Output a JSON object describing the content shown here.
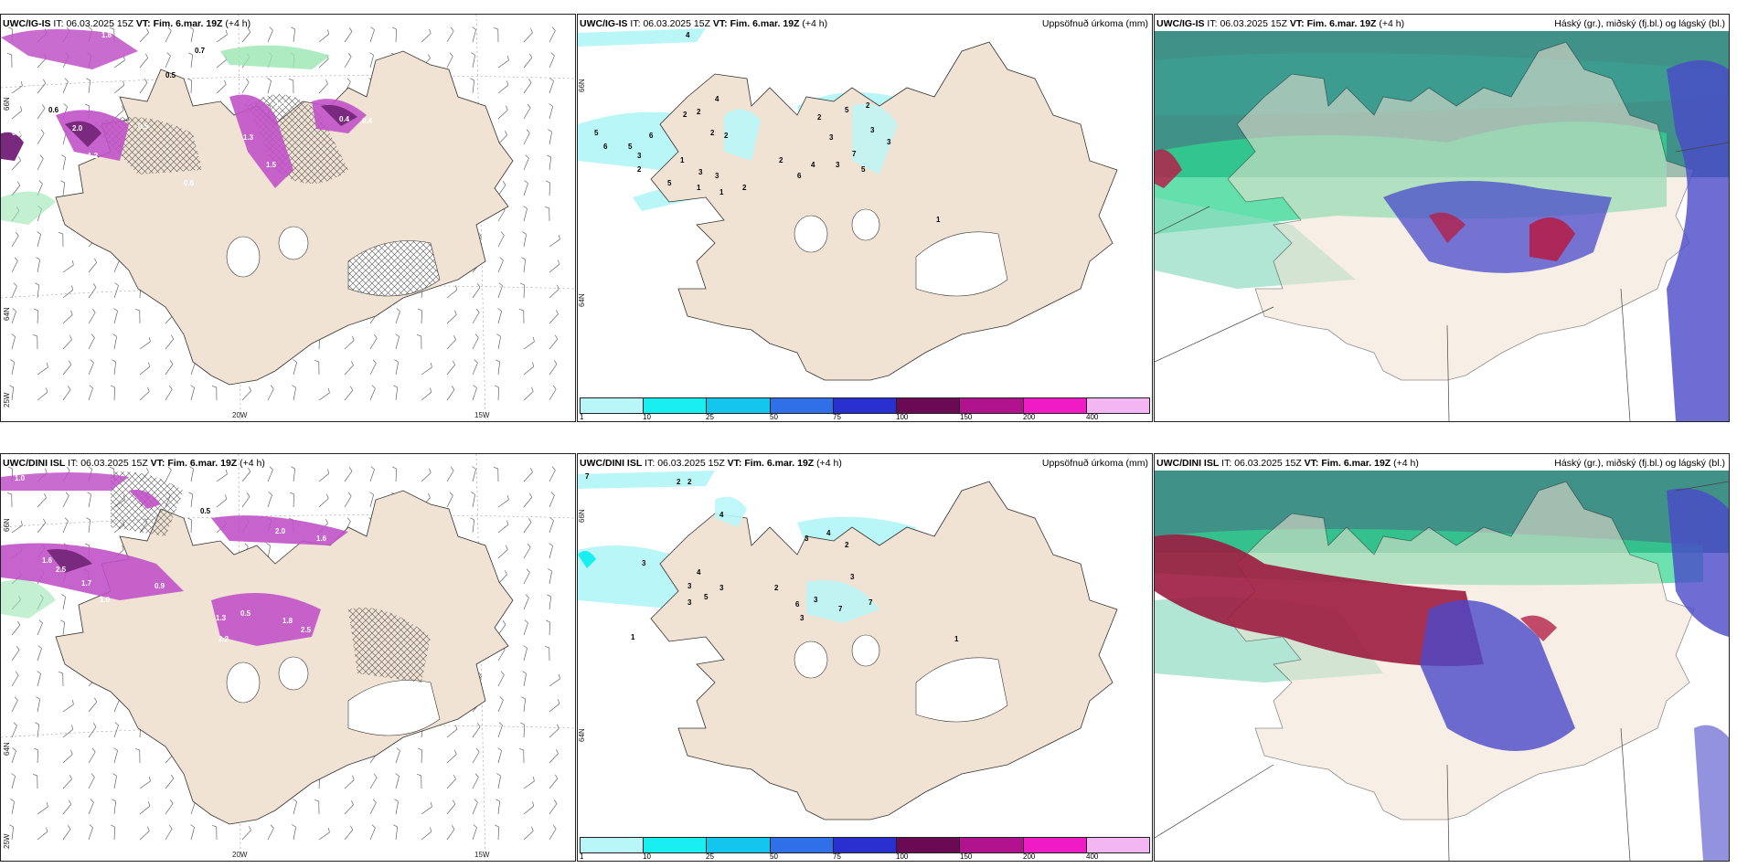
{
  "colors": {
    "land": "#f1e3d3",
    "coast": "#333333",
    "precip_light": "#b9f6f8",
    "snow_purple": "#c052c8",
    "snow_dark": "#7a2a7e",
    "green_light": "#9be6b0",
    "cloud_teal": "#1f7f74",
    "cloud_green": "#2fd690",
    "cloud_blue": "#4a49c9",
    "cloud_red": "#b3204a"
  },
  "colorbar": {
    "ticks": [
      "1",
      "10",
      "25",
      "50",
      "75",
      "100",
      "150",
      "200",
      "400"
    ],
    "colors": [
      "#b9f6f8",
      "#19eef0",
      "#13c6ee",
      "#2f6fe8",
      "#2a2fd0",
      "#6a0a55",
      "#b1138e",
      "#ef1cc6",
      "#f3b6f2"
    ]
  },
  "rows": [
    {
      "panels": [
        {
          "model": "UWC/IG-IS",
          "it_label": "IT:",
          "it_value": "06.03.2025 15Z",
          "vt_label": "VT:",
          "vt_value": "Fim. 6.mar. 19Z",
          "lead": "(+4 h)",
          "right_title": "",
          "coords": {
            "top_left": "66N",
            "mid_left": "64N",
            "bottom_left": "25W",
            "bottom_mid": "20W",
            "bottom_right": "15W"
          },
          "labels": [
            "0.5",
            "0.7",
            "0.6",
            "0.9",
            "1.8",
            "0.5",
            "0.4",
            "1.2",
            "2.0",
            "0.6",
            "1.5",
            "1.3",
            "0.4",
            "1.2"
          ]
        },
        {
          "model": "UWC/IG-IS",
          "it_label": "IT:",
          "it_value": "06.03.2025 15Z",
          "vt_label": "VT:",
          "vt_value": "Fim. 6.mar. 19Z",
          "lead": "(+4 h)",
          "right_title": "Uppsöfnuð úrkoma (mm)",
          "coords": {
            "side1": "66N",
            "side2": "64N"
          },
          "labels": [
            "5",
            "6",
            "5",
            "6",
            "2",
            "2",
            "3",
            "2",
            "1",
            "3",
            "5",
            "2",
            "1",
            "2",
            "1",
            "3",
            "2",
            "4",
            "2",
            "5",
            "3",
            "6",
            "2",
            "4",
            "3",
            "7",
            "3",
            "5",
            "2",
            "3",
            "1",
            "4"
          ]
        },
        {
          "model": "UWC/IG-IS",
          "it_label": "IT:",
          "it_value": "06.03.2025 15Z",
          "vt_label": "VT:",
          "vt_value": "Fim. 6.mar. 19Z",
          "lead": "(+4 h)",
          "right_title": "Háský (gr.), miðský (fj.bl.) og lágský (bl.)"
        }
      ]
    },
    {
      "panels": [
        {
          "model": "UWC/DINI ISL",
          "it_label": "IT:",
          "it_value": "06.03.2025 15Z",
          "vt_label": "VT:",
          "vt_value": "Fim. 6.mar. 19Z",
          "lead": "(+4 h)",
          "right_title": "",
          "coords": {
            "top_left": "66N",
            "mid_left": "64N",
            "bottom_left": "25W",
            "bottom_mid": "20W",
            "bottom_right": "15W"
          },
          "labels": [
            "1.0",
            "0.5",
            "1.6",
            "2.5",
            "1.7",
            "1.0",
            "0.9",
            "2.0",
            "1.6",
            "0.5",
            "1.3",
            "2.2",
            "1.8",
            "2.5"
          ]
        },
        {
          "model": "UWC/DINI ISL",
          "it_label": "IT:",
          "it_value": "06.03.2025 15Z",
          "vt_label": "VT:",
          "vt_value": "Fim. 6.mar. 19Z",
          "lead": "(+4 h)",
          "right_title": "Uppsöfnuð úrkoma (mm)",
          "coords": {
            "side1": "66N",
            "side2": "64N"
          },
          "labels": [
            "7",
            "2",
            "2",
            "4",
            "3",
            "4",
            "3",
            "3",
            "5",
            "3",
            "2",
            "3",
            "4",
            "2",
            "6",
            "3",
            "7",
            "3",
            "7",
            "1",
            "1",
            "3"
          ]
        },
        {
          "model": "UWC/DINI ISL",
          "it_label": "IT:",
          "it_value": "06.03.2025 15Z",
          "vt_label": "VT:",
          "vt_value": "Fim. 6.mar. 19Z",
          "lead": "(+4 h)",
          "right_title": "Háský (gr.), miðský (fj.bl.) og lágský (bl.)"
        }
      ]
    }
  ]
}
